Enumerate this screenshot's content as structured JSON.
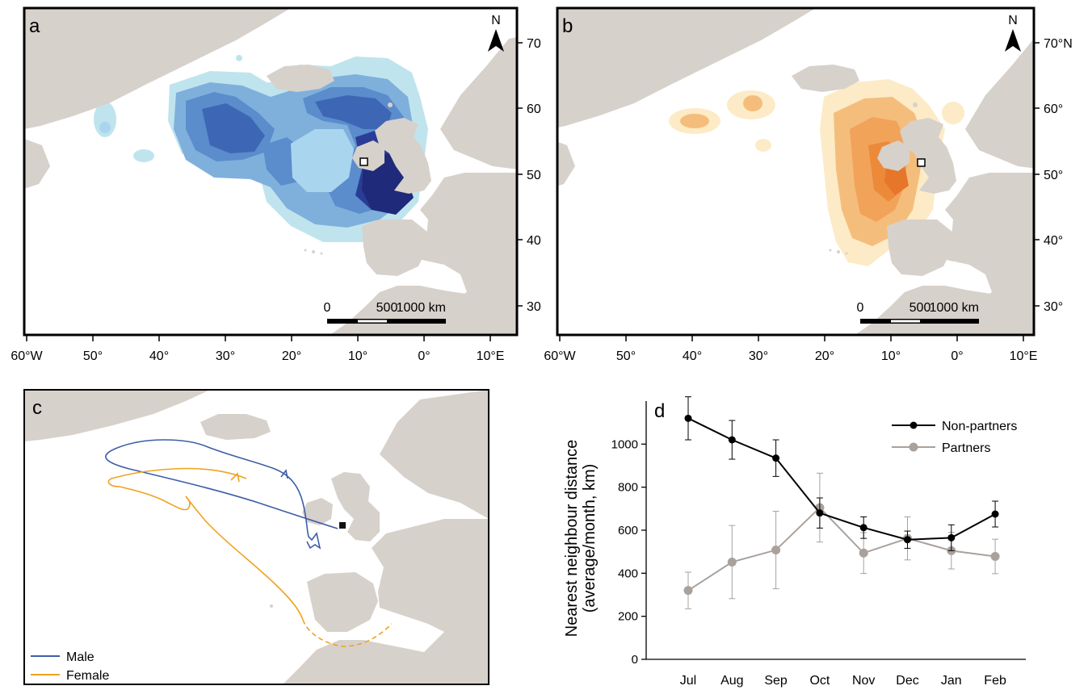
{
  "panels": [
    {
      "letter": "a"
    },
    {
      "letter": "b"
    },
    {
      "letter": "c"
    },
    {
      "letter": "d"
    }
  ],
  "north_label": "N",
  "lat_labels": [
    "70°N",
    "60°",
    "50°",
    "40°",
    "30°"
  ],
  "lon_labels": [
    "60°W",
    "50°",
    "40°",
    "30°",
    "20°",
    "10°",
    "0°",
    "10°E"
  ],
  "scalebar": {
    "zero": "0",
    "mid": "500",
    "end": "1000 km"
  },
  "legend_c": [
    {
      "label": "Male",
      "color": "#3c5ea8"
    },
    {
      "label": "Female",
      "color": "#f0a21e"
    }
  ],
  "colors": {
    "land": "#d7d1cb",
    "blue_ramp": [
      "#c0e4ee",
      "#a9d6ee",
      "#7fb0dc",
      "#5b8ccb",
      "#3d67b4",
      "#2a3d96",
      "#1f2a7a"
    ],
    "orange_ramp": [
      "#fcebc6",
      "#f9d9a6",
      "#f5bd7c",
      "#f1a35a",
      "#ec8a3a",
      "#e6762a"
    ],
    "non_partners": "#000000",
    "partners": "#a9a19c"
  },
  "chart_data": {
    "type": "line",
    "categories": [
      "Jul",
      "Aug",
      "Sep",
      "Oct",
      "Nov",
      "Dec",
      "Jan",
      "Feb"
    ],
    "ylabel": "Nearest neighbour distance (average/month, km)",
    "ylim": [
      0,
      1200
    ],
    "yticks": [
      "0",
      "200",
      "400",
      "600",
      "800",
      "1000"
    ],
    "series": [
      {
        "name": "Non-partners",
        "values": [
          1120,
          1020,
          935,
          680,
          612,
          556,
          565,
          675
        ],
        "err": [
          100,
          90,
          85,
          70,
          50,
          40,
          60,
          60
        ]
      },
      {
        "name": "Partners",
        "values": [
          320,
          452,
          508,
          705,
          494,
          562,
          505,
          478
        ],
        "err": [
          85,
          170,
          180,
          160,
          95,
          100,
          85,
          80
        ]
      }
    ],
    "legend": "top-right"
  }
}
